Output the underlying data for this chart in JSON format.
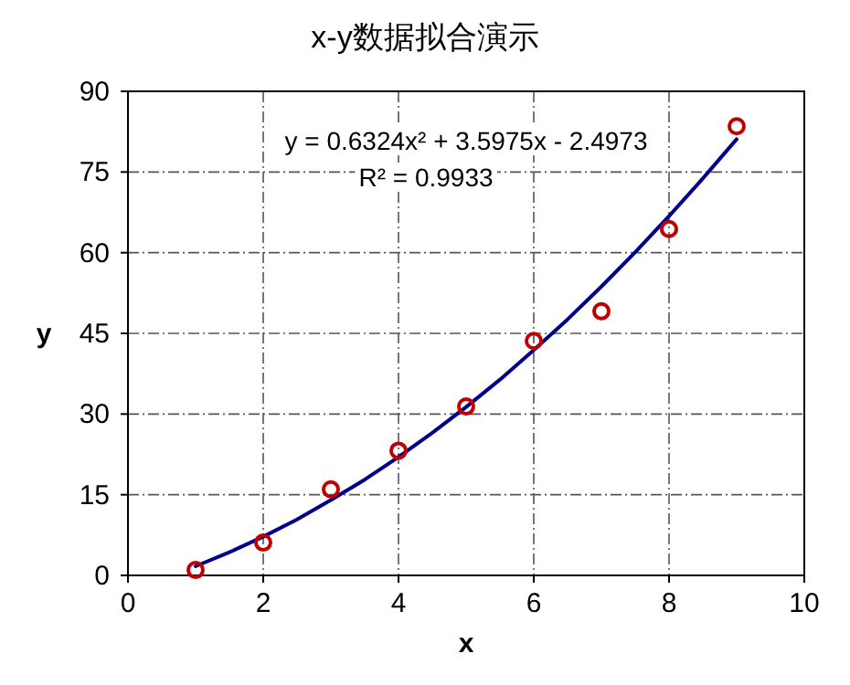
{
  "chart_data": {
    "type": "scatter",
    "title": "x-y数据拟合演示",
    "xlabel": "x",
    "ylabel": "y",
    "xlim": [
      0,
      10
    ],
    "xticks": [
      0,
      2,
      4,
      6,
      8,
      10
    ],
    "ylim": [
      0,
      90
    ],
    "yticks": [
      0,
      15,
      30,
      45,
      60,
      75,
      90
    ],
    "grid": true,
    "annotations": [
      "y = 0.6324x² + 3.5975x - 2.4973",
      "R² = 0.9933"
    ],
    "series": [
      {
        "type": "line",
        "color": "#00008b",
        "x": [
          1,
          1.5,
          2,
          2.5,
          3,
          3.5,
          4,
          4.5,
          5,
          5.5,
          6,
          6.5,
          7,
          7.5,
          8,
          8.5,
          9
        ],
        "values": [
          1.7,
          4.3,
          7.2,
          10.4,
          14.0,
          17.8,
          22.0,
          26.5,
          31.3,
          36.4,
          41.9,
          47.6,
          53.7,
          60.1,
          66.8,
          73.8,
          81.1
        ]
      },
      {
        "color": "#c00000",
        "marker": "circle",
        "x": [
          1,
          2,
          3,
          4,
          5,
          6,
          7,
          8,
          9
        ],
        "values": [
          1.0,
          6.1,
          16.0,
          23.2,
          31.4,
          43.6,
          49.1,
          64.4,
          83.5
        ]
      }
    ]
  }
}
